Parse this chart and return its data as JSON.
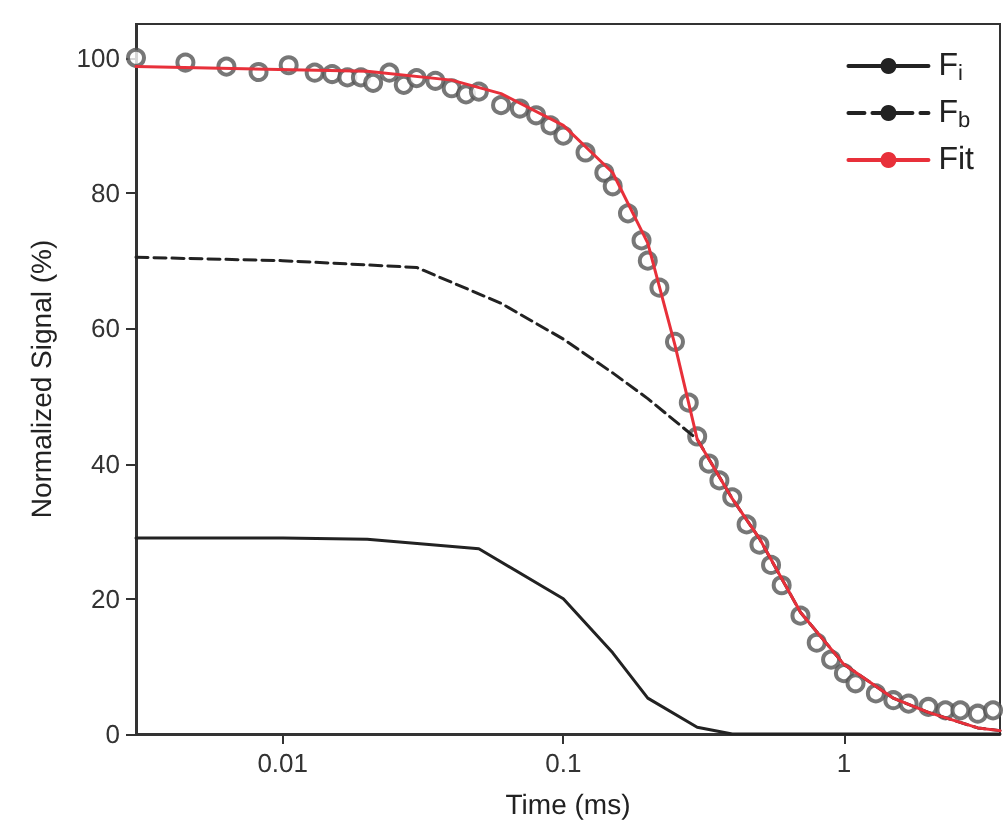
{
  "chart_data": {
    "type": "line",
    "xlabel": "Time (ms)",
    "ylabel": "Normalized Signal (%)",
    "log": "x",
    "xlim": [
      0.003,
      3.6
    ],
    "xticks": [
      0.01,
      0.1,
      1
    ],
    "ylim": [
      0,
      105
    ],
    "yticks": [
      0,
      20,
      40,
      60,
      80,
      100
    ],
    "grid": false,
    "legend": "top right",
    "line_style": "solid",
    "marker": "none",
    "series": [
      {
        "type": "scatter",
        "marker": "circle",
        "color": "#555555",
        "x": [
          0.003,
          0.0045,
          0.0063,
          0.0082,
          0.0105,
          0.013,
          0.015,
          0.017,
          0.019,
          0.021,
          0.024,
          0.027,
          0.03,
          0.035,
          0.04,
          0.045,
          0.05,
          0.06,
          0.07,
          0.08,
          0.09,
          0.1,
          0.12,
          0.14,
          0.15,
          0.17,
          0.19,
          0.2,
          0.22,
          0.25,
          0.28,
          0.3,
          0.33,
          0.36,
          0.4,
          0.45,
          0.5,
          0.55,
          0.6,
          0.7,
          0.8,
          0.9,
          1.0,
          1.1,
          1.3,
          1.5,
          1.7,
          2.0,
          2.3,
          2.6,
          3.0,
          3.4
        ],
        "values": [
          100,
          99.3,
          98.7,
          97.9,
          98.9,
          97.8,
          97.6,
          97.1,
          97.1,
          96.3,
          97.8,
          96,
          97,
          96.6,
          95.5,
          94.6,
          95,
          93,
          92.5,
          91.5,
          90,
          88.5,
          86,
          83,
          81,
          77,
          73,
          70,
          66,
          58,
          49,
          44,
          40,
          37.5,
          35,
          31,
          28,
          25,
          22,
          17.5,
          13.5,
          11,
          9,
          7.5,
          6,
          5,
          4.5,
          4,
          3.5,
          3.5,
          3,
          3.5
        ]
      },
      {
        "name": "F$_{i}$",
        "color": "#222222",
        "x": [
          0.003,
          0.01,
          0.02,
          0.05,
          0.1,
          0.15,
          0.2,
          0.3,
          0.4,
          1,
          3.6
        ],
        "values": [
          29,
          29,
          28.8,
          27.4,
          20,
          12,
          5.3,
          1,
          0,
          0,
          0
        ]
      },
      {
        "name": "F$_{b}$",
        "color": "#222222",
        "line_style": "dashed",
        "x": [
          0.003,
          0.01,
          0.03,
          0.06,
          0.1,
          0.15,
          0.2,
          0.3,
          0.4,
          0.5,
          0.7,
          1,
          1.5,
          2,
          3,
          3.6
        ],
        "values": [
          70.5,
          70,
          69,
          63.7,
          58.4,
          53.4,
          49.6,
          43.6,
          34.8,
          28.9,
          18,
          10.3,
          5.3,
          3.2,
          0.9,
          0.5
        ]
      },
      {
        "name": "Fit",
        "color": "#e8303a",
        "x": [
          0.003,
          0.02,
          0.04,
          0.06,
          0.1,
          0.15,
          0.2,
          0.25,
          0.3,
          0.4,
          0.5,
          0.7,
          1,
          1.5,
          2,
          3,
          3.6
        ],
        "values": [
          98.7,
          98,
          96.7,
          94.7,
          90,
          83,
          72.6,
          57.5,
          43.6,
          34.8,
          28.9,
          18,
          10.3,
          5.3,
          3.2,
          0.9,
          0.5
        ]
      }
    ]
  }
}
